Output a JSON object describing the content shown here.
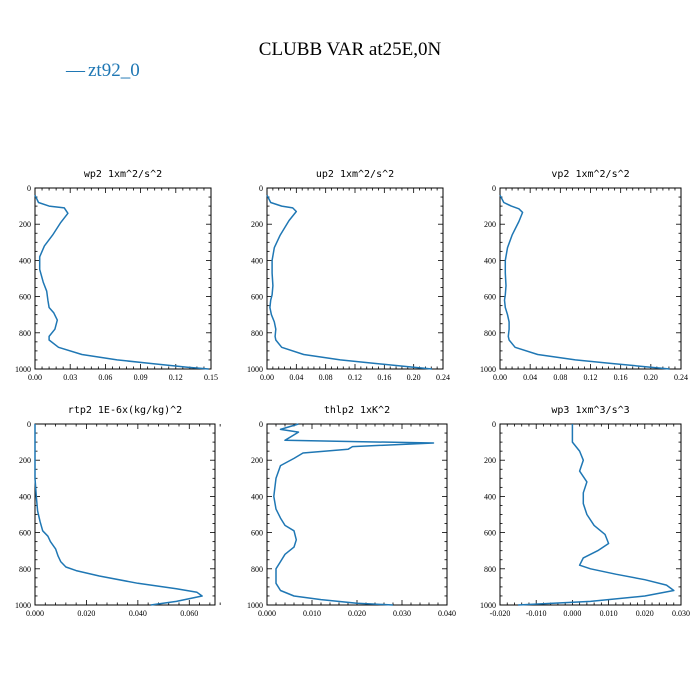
{
  "figure": {
    "title": "CLUBB VAR at25E,0N",
    "legend": {
      "line": "—",
      "label": "zt92_0",
      "color": "#1f77b4"
    }
  },
  "chart_data": [
    {
      "type": "line",
      "title": "wp2  1xm^2/s^2",
      "xlim": [
        0,
        0.15
      ],
      "ylim": [
        1000,
        0
      ],
      "xticks": [
        0,
        0.03,
        0.06,
        0.09,
        0.12,
        0.15
      ],
      "xtick_labels": [
        "0.00",
        "0.03",
        "0.06",
        "0.09",
        "0.12",
        "0.15"
      ],
      "yticks": [
        0,
        200,
        400,
        600,
        800,
        1000
      ],
      "ytick_labels": [
        "0",
        "200",
        "400",
        "600",
        "800",
        "1000"
      ],
      "series": [
        {
          "color": "#1f77b4",
          "x": [
            0.0,
            0.003,
            0.012,
            0.025,
            0.028,
            0.022,
            0.015,
            0.008,
            0.004,
            0.004,
            0.007,
            0.01,
            0.011,
            0.012,
            0.016,
            0.019,
            0.017,
            0.012,
            0.012,
            0.02,
            0.04,
            0.07,
            0.1,
            0.13,
            0.148
          ],
          "y": [
            40,
            80,
            100,
            110,
            140,
            190,
            260,
            320,
            380,
            450,
            520,
            570,
            620,
            660,
            690,
            730,
            780,
            820,
            840,
            880,
            920,
            950,
            970,
            990,
            1000
          ]
        }
      ]
    },
    {
      "type": "line",
      "title": "up2  1xm^2/s^2",
      "xlim": [
        0,
        0.24
      ],
      "ylim": [
        1000,
        0
      ],
      "xticks": [
        0,
        0.04,
        0.08,
        0.12,
        0.16,
        0.2,
        0.24
      ],
      "xtick_labels": [
        "0.00",
        "0.04",
        "0.08",
        "0.12",
        "0.16",
        "0.20",
        "0.24"
      ],
      "yticks": [
        0,
        200,
        400,
        600,
        800,
        1000
      ],
      "ytick_labels": [
        "0",
        "200",
        "400",
        "600",
        "800",
        "1000"
      ],
      "series": [
        {
          "color": "#1f77b4",
          "x": [
            0.0,
            0.005,
            0.02,
            0.035,
            0.04,
            0.03,
            0.018,
            0.01,
            0.007,
            0.007,
            0.008,
            0.007,
            0.005,
            0.004,
            0.006,
            0.01,
            0.012,
            0.011,
            0.012,
            0.02,
            0.05,
            0.1,
            0.15,
            0.2,
            0.225
          ],
          "y": [
            40,
            80,
            100,
            110,
            130,
            180,
            260,
            330,
            400,
            470,
            540,
            590,
            620,
            660,
            700,
            740,
            780,
            820,
            840,
            880,
            920,
            950,
            970,
            990,
            1000
          ]
        }
      ]
    },
    {
      "type": "line",
      "title": "vp2  1xm^2/s^2",
      "xlim": [
        0,
        0.24
      ],
      "ylim": [
        1000,
        0
      ],
      "xticks": [
        0,
        0.04,
        0.08,
        0.12,
        0.16,
        0.2,
        0.24
      ],
      "xtick_labels": [
        "0.00",
        "0.04",
        "0.08",
        "0.12",
        "0.16",
        "0.20",
        "0.24"
      ],
      "yticks": [
        0,
        200,
        400,
        600,
        800,
        1000
      ],
      "ytick_labels": [
        "0",
        "200",
        "400",
        "600",
        "800",
        "1000"
      ],
      "series": [
        {
          "color": "#1f77b4",
          "x": [
            0.0,
            0.005,
            0.015,
            0.025,
            0.03,
            0.025,
            0.016,
            0.01,
            0.007,
            0.007,
            0.008,
            0.007,
            0.006,
            0.007,
            0.01,
            0.012,
            0.012,
            0.011,
            0.012,
            0.02,
            0.05,
            0.1,
            0.15,
            0.2,
            0.225
          ],
          "y": [
            40,
            80,
            100,
            115,
            135,
            185,
            260,
            330,
            400,
            470,
            540,
            590,
            620,
            660,
            700,
            740,
            780,
            820,
            840,
            880,
            920,
            950,
            970,
            990,
            1000
          ]
        }
      ]
    },
    {
      "type": "line",
      "title": "rtp2  1E-6x(kg/kg)^2",
      "xlim": [
        0,
        0.07
      ],
      "ylim": [
        1000,
        0
      ],
      "xticks": [
        0,
        0.02,
        0.04,
        0.06
      ],
      "xtick_labels": [
        "0.000",
        "0.020",
        "0.040",
        "0.060"
      ],
      "yticks": [
        0,
        200,
        400,
        600,
        800,
        1000
      ],
      "ytick_labels": [
        "0",
        "200",
        "400",
        "600",
        "800",
        "1000"
      ],
      "series": [
        {
          "color": "#1f77b4",
          "x": [
            0.0,
            0.0,
            0.0005,
            0.001,
            0.002,
            0.003,
            0.005,
            0.006,
            0.008,
            0.009,
            0.01,
            0.012,
            0.016,
            0.025,
            0.04,
            0.055,
            0.063,
            0.065,
            0.055,
            0.045
          ],
          "y": [
            0,
            300,
            400,
            480,
            540,
            590,
            620,
            650,
            690,
            730,
            760,
            790,
            810,
            840,
            880,
            910,
            930,
            950,
            980,
            1000
          ]
        }
      ]
    },
    {
      "type": "line",
      "title": "thlp2  1xK^2",
      "xlim": [
        0,
        0.04
      ],
      "ylim": [
        1000,
        0
      ],
      "xticks": [
        0,
        0.01,
        0.02,
        0.03,
        0.04
      ],
      "xtick_labels": [
        "0.000",
        "0.010",
        "0.020",
        "0.030",
        "0.040"
      ],
      "yticks": [
        0,
        200,
        400,
        600,
        800,
        1000
      ],
      "ytick_labels": [
        "0",
        "200",
        "400",
        "600",
        "800",
        "1000"
      ],
      "series": [
        {
          "color": "#1f77b4",
          "x": [
            0.007,
            0.003,
            0.007,
            0.004,
            0.037,
            0.019,
            0.018,
            0.008,
            0.006,
            0.003,
            0.002,
            0.0015,
            0.002,
            0.003,
            0.004,
            0.006,
            0.0065,
            0.006,
            0.004,
            0.003,
            0.002,
            0.002,
            0.003,
            0.006,
            0.012,
            0.02,
            0.028
          ],
          "y": [
            0,
            30,
            45,
            90,
            105,
            125,
            140,
            160,
            190,
            230,
            300,
            400,
            470,
            520,
            560,
            590,
            640,
            680,
            720,
            760,
            800,
            880,
            920,
            950,
            970,
            990,
            1000
          ]
        }
      ]
    },
    {
      "type": "line",
      "title": "wp3  1xm^3/s^3",
      "xlim": [
        -0.02,
        0.03
      ],
      "ylim": [
        1000,
        0
      ],
      "xticks": [
        -0.02,
        -0.01,
        0,
        0.01,
        0.02,
        0.03
      ],
      "xtick_labels": [
        "-0.020",
        "-0.010",
        "0.000",
        "0.010",
        "0.020",
        "0.030"
      ],
      "yticks": [
        0,
        200,
        400,
        600,
        800,
        1000
      ],
      "ytick_labels": [
        "0",
        "200",
        "400",
        "600",
        "800",
        "1000"
      ],
      "series": [
        {
          "color": "#1f77b4",
          "x": [
            0.0,
            0.0,
            0.002,
            0.003,
            0.002,
            0.004,
            0.003,
            0.003,
            0.004,
            0.006,
            0.009,
            0.01,
            0.007,
            0.003,
            0.002,
            0.005,
            0.012,
            0.02,
            0.026,
            0.028,
            0.02,
            0.005,
            -0.015
          ],
          "y": [
            0,
            100,
            150,
            200,
            260,
            320,
            380,
            440,
            500,
            560,
            610,
            660,
            700,
            740,
            780,
            800,
            830,
            860,
            890,
            920,
            950,
            980,
            1000
          ]
        }
      ]
    }
  ]
}
